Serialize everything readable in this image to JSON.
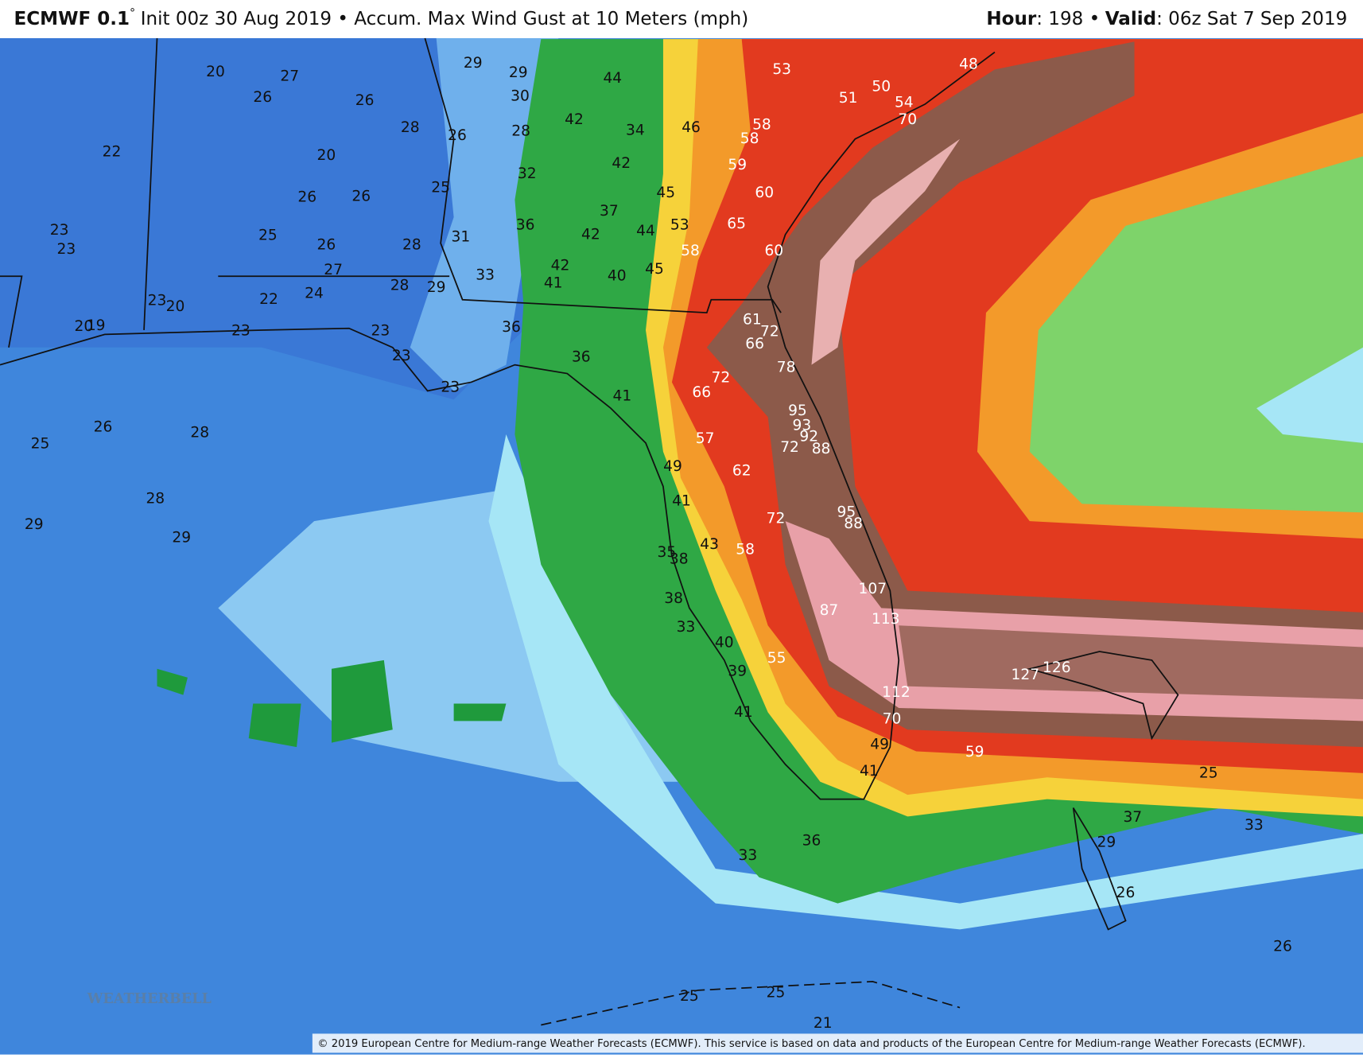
{
  "header": {
    "model": "ECMWF 0.1",
    "degree": "°",
    "description": "Init 00z 30 Aug 2019 • Accum. Max Wind Gust at 10 Meters (mph)",
    "hour_label": "Hour",
    "hour": ": 198 •",
    "valid_label": "Valid",
    "valid": ": 06z Sat 7 Sep 2019"
  },
  "map": {
    "gust_labels": [
      20,
      27,
      26,
      26,
      28,
      26,
      29,
      29,
      30,
      28,
      22,
      20,
      32,
      25,
      26,
      26,
      23,
      23,
      25,
      26,
      28,
      31,
      27,
      28,
      29,
      33,
      23,
      20,
      22,
      24,
      20,
      19,
      23,
      23,
      23,
      23,
      26,
      28,
      25,
      28,
      29,
      29,
      44,
      42,
      34,
      46,
      42,
      45,
      37,
      36,
      42,
      44,
      53,
      42,
      41,
      40,
      45,
      36,
      36,
      41,
      49,
      41,
      35,
      38,
      43,
      38,
      33,
      40,
      39,
      41,
      49,
      41,
      33,
      36,
      37,
      29,
      33,
      26,
      25,
      26,
      25,
      25,
      21,
      53,
      50,
      51,
      54,
      48,
      70,
      58,
      58,
      59,
      60,
      65,
      58,
      60,
      61,
      72,
      66,
      78,
      72,
      66,
      95,
      93,
      92,
      88,
      72,
      57,
      62,
      72,
      95,
      88,
      58,
      107,
      113,
      87,
      55,
      112,
      70,
      59,
      127,
      126
    ]
  },
  "logo": "WEATHERBELL",
  "footer": {
    "copyright": "© 2019 European Centre for Medium-range Weather Forecasts (ECMWF). This service is based on data and products of the European Centre for Medium-range Weather Forecasts (ECMWF)."
  }
}
